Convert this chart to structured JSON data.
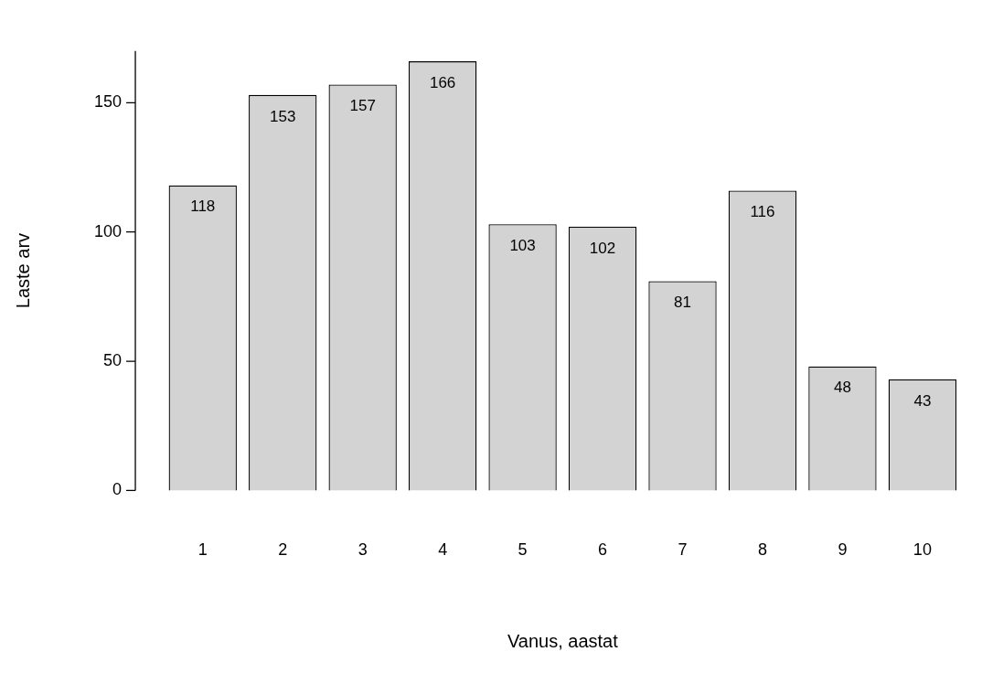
{
  "chart_data": {
    "type": "bar",
    "xlabel": "Vanus, aastat",
    "ylabel": "Laste arv",
    "categories": [
      "1",
      "2",
      "3",
      "4",
      "5",
      "6",
      "7",
      "8",
      "9",
      "10"
    ],
    "values": [
      118,
      153,
      157,
      166,
      103,
      102,
      81,
      116,
      48,
      43
    ],
    "color": "#d3d3d3",
    "ylim": [
      0,
      170
    ],
    "yticks": [
      0,
      50,
      100,
      150
    ],
    "grid": false,
    "legend": false,
    "data_labels": true
  }
}
